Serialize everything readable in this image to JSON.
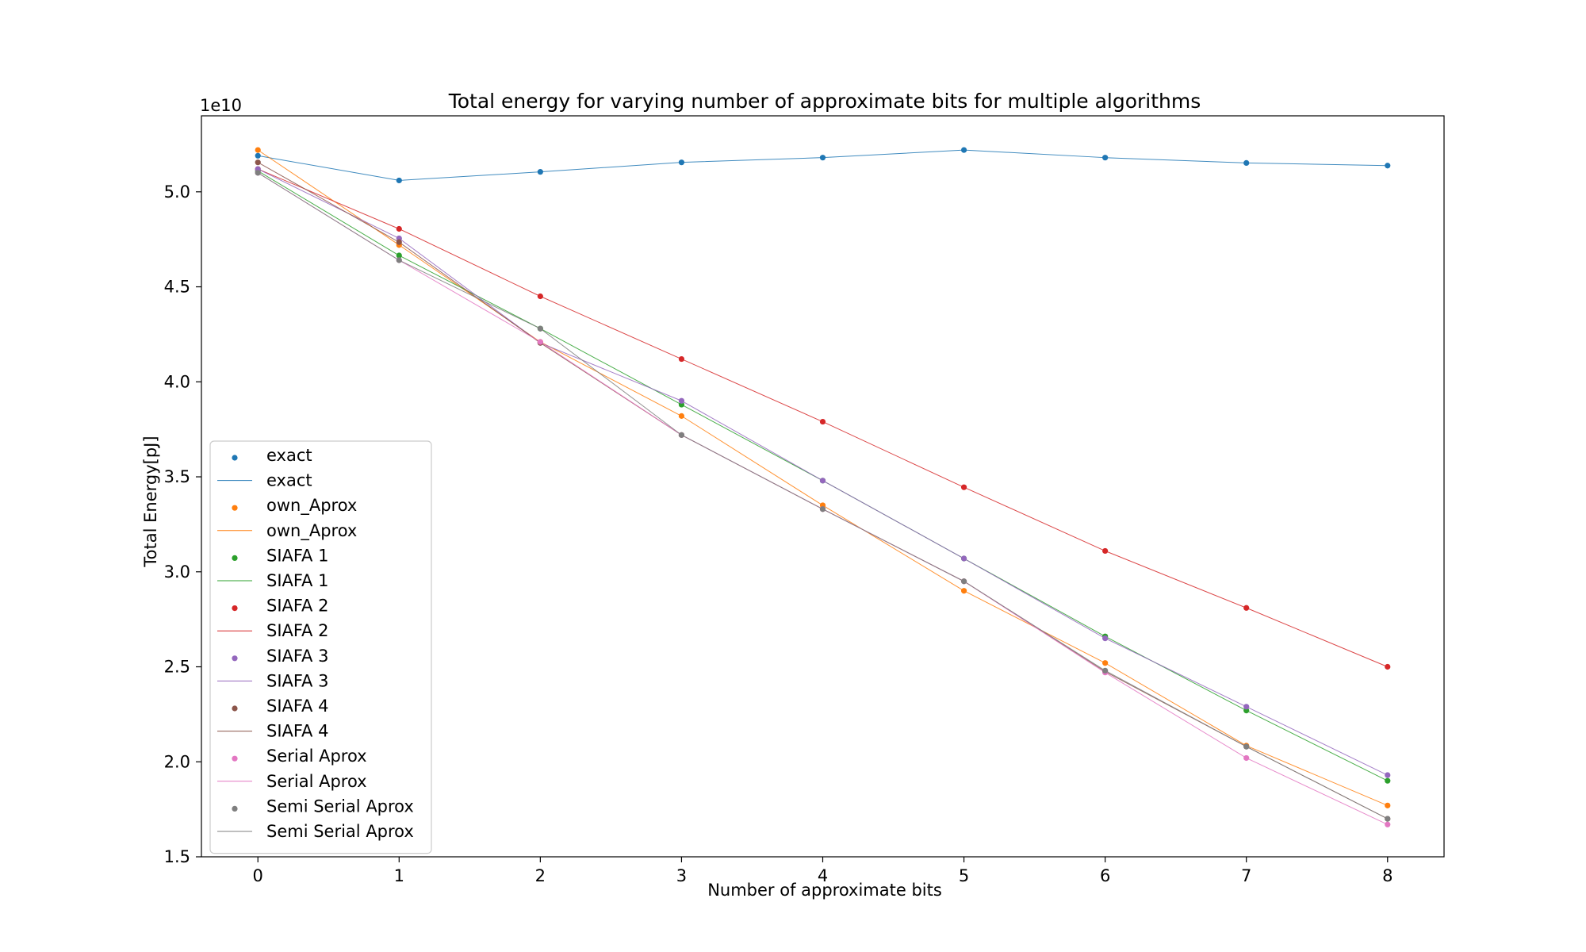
{
  "chart_data": {
    "type": "line",
    "title": "Total energy for varying number of approximate bits for multiple algorithms",
    "xlabel": "Number of approximate bits",
    "ylabel": "Total Energy[pJ]",
    "y_offset_label": "1e10",
    "x": [
      0,
      1,
      2,
      3,
      4,
      5,
      6,
      7,
      8
    ],
    "x_tick_labels": [
      "0",
      "1",
      "2",
      "3",
      "4",
      "5",
      "6",
      "7",
      "8"
    ],
    "y_ticks": [
      1.5,
      2.0,
      2.5,
      3.0,
      3.5,
      4.0,
      4.5,
      5.0
    ],
    "y_tick_labels": [
      "1.5",
      "2.0",
      "2.5",
      "3.0",
      "3.5",
      "4.0",
      "4.5",
      "5.0"
    ],
    "xlim": [
      -0.4,
      8.4
    ],
    "ylim": [
      1.5,
      5.4
    ],
    "grid": false,
    "legend_position": "lower-left",
    "series": [
      {
        "name": "exact",
        "color": "#1f77b4",
        "values": [
          5.19,
          5.06,
          5.105,
          5.155,
          5.18,
          5.22,
          5.18,
          5.152,
          5.138
        ]
      },
      {
        "name": "own_Aprox",
        "color": "#ff7f0e",
        "values": [
          5.22,
          4.72,
          4.21,
          3.82,
          3.35,
          2.9,
          2.52,
          2.085,
          1.77
        ]
      },
      {
        "name": "SIAFA 1",
        "color": "#2ca02c",
        "values": [
          5.11,
          4.665,
          4.28,
          3.88,
          3.48,
          3.07,
          2.66,
          2.27,
          1.9
        ]
      },
      {
        "name": "SIAFA 2",
        "color": "#d62728",
        "values": [
          5.12,
          4.805,
          4.45,
          4.12,
          3.79,
          3.445,
          3.11,
          2.81,
          2.5
        ]
      },
      {
        "name": "SIAFA 3",
        "color": "#9467bd",
        "values": [
          5.12,
          4.755,
          4.205,
          3.9,
          3.48,
          3.07,
          2.65,
          2.29,
          1.93
        ]
      },
      {
        "name": "SIAFA 4",
        "color": "#8c564b",
        "values": [
          5.155,
          4.735,
          4.205,
          3.72,
          3.33,
          2.95,
          2.475,
          2.08,
          1.7
        ]
      },
      {
        "name": "Serial Aprox",
        "color": "#e377c2",
        "values": [
          5.1,
          4.64,
          4.21,
          3.72,
          3.33,
          2.95,
          2.47,
          2.02,
          1.67
        ]
      },
      {
        "name": "Semi Serial Aprox",
        "color": "#7f7f7f",
        "values": [
          5.1,
          4.64,
          4.28,
          3.72,
          3.33,
          2.95,
          2.48,
          2.08,
          1.7
        ]
      }
    ]
  }
}
